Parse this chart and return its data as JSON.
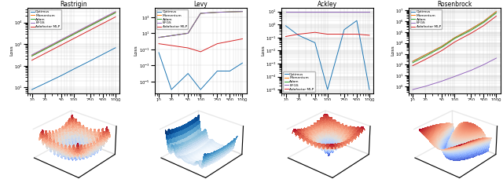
{
  "dims": [
    10,
    20,
    50,
    100,
    250,
    500,
    1000
  ],
  "rastrigin": {
    "title": "Rastrigin",
    "optimus": [
      8,
      15,
      35,
      70,
      170,
      340,
      680
    ],
    "momentum": [
      300,
      600,
      1500,
      3000,
      7500,
      15000,
      30000
    ],
    "adam": [
      280,
      560,
      1400,
      2800,
      7000,
      14000,
      28000
    ],
    "bfgs": [
      320,
      640,
      1600,
      3200,
      8000,
      16000,
      32000
    ],
    "adafactor": [
      180,
      360,
      900,
      1800,
      4500,
      9000,
      18000
    ],
    "ylabel": "Loss"
  },
  "levy": {
    "title": "Levy",
    "optimus": [
      0.04,
      1e-06,
      0.0001,
      1e-06,
      0.0002,
      0.0002,
      0.002
    ],
    "momentum": [
      3,
      5,
      10,
      3000,
      4000,
      4500,
      5000
    ],
    "adam": [
      3,
      5,
      10,
      3000,
      4000,
      4500,
      5000
    ],
    "bfgs": [
      3,
      5,
      10,
      3000,
      4000,
      4500,
      5000
    ],
    "adafactor": [
      0.5,
      0.3,
      0.15,
      0.05,
      0.5,
      1.0,
      2.0
    ],
    "ylabel": "Loss"
  },
  "ackley": {
    "title": "Ackley",
    "optimus": [
      0.8,
      0.15,
      0.04,
      1e-05,
      0.4,
      2.0,
      1e-05
    ],
    "momentum": [
      10,
      10,
      10,
      10,
      10,
      10,
      10
    ],
    "adam": [
      10,
      10,
      10,
      10,
      10,
      10,
      10
    ],
    "bfgs": [
      10,
      10,
      10,
      10,
      10,
      10,
      10
    ],
    "adafactor": [
      0.12,
      0.18,
      0.25,
      0.18,
      0.18,
      0.18,
      0.15
    ],
    "ylabel": "Loss"
  },
  "rosenbrock": {
    "title": "Rosenbrock",
    "optimus": [
      200,
      800,
      5000,
      30000,
      200000,
      1000000,
      8000000
    ],
    "momentum": [
      200,
      800,
      5000,
      30000,
      200000,
      1000000,
      8000000
    ],
    "adam": [
      150,
      600,
      4000,
      25000,
      150000,
      800000,
      6000000
    ],
    "bfgs": [
      0.5,
      1.0,
      3.0,
      8.0,
      30,
      100,
      400
    ],
    "adafactor": [
      80,
      300,
      2000,
      12000,
      80000,
      400000,
      3000000
    ],
    "ylabel": "Loss"
  },
  "colors": {
    "optimus": "#1f77b4",
    "momentum": "#ff7f0e",
    "adam": "#2ca02c",
    "bfgs": "#9467bd",
    "adafactor": "#d62728"
  },
  "legend_labels": [
    "Optimus",
    "Momentum",
    "Adam",
    "BFGS",
    "Adafactor MLP"
  ]
}
